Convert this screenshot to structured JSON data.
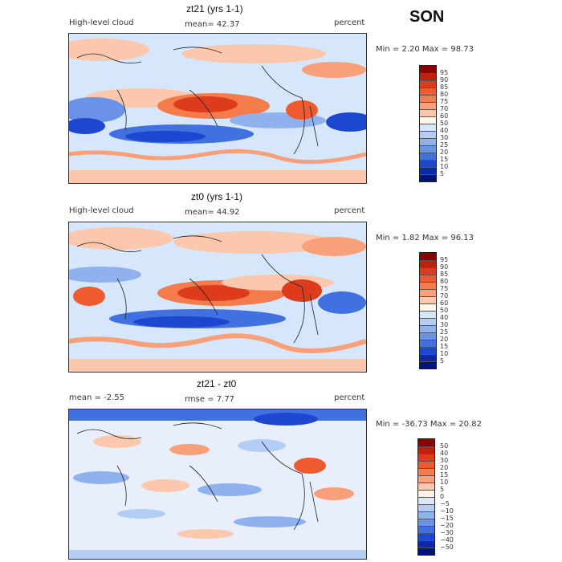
{
  "season": "SON",
  "panels": [
    {
      "title": "zt21 (yrs 1-1)",
      "left_label": "High-level cloud",
      "mean_label": "mean=  42.37",
      "units": "percent",
      "minmax": "Min =    2.20 Max =  98.73",
      "levels": [
        "95",
        "90",
        "85",
        "80",
        "75",
        "70",
        "60",
        "50",
        "40",
        "30",
        "25",
        "20",
        "15",
        "10",
        "5"
      ],
      "colors": [
        "#8b0000",
        "#c0200c",
        "#dd3b1c",
        "#ef5a2e",
        "#f47b4b",
        "#f8a07a",
        "#fbc8ad",
        "#fff8ea",
        "#d6e6fb",
        "#b4cdf5",
        "#8fb2ee",
        "#6a93e8",
        "#4170e0",
        "#1d47cf",
        "#0a2aa8",
        "#00137a"
      ]
    },
    {
      "title": "zt0 (yrs 1-1)",
      "left_label": "High-level cloud",
      "mean_label": "mean=  44.92",
      "units": "percent",
      "minmax": "Min =    1.82 Max =  96.13",
      "levels": [
        "95",
        "90",
        "85",
        "80",
        "75",
        "70",
        "60",
        "50",
        "40",
        "30",
        "25",
        "20",
        "15",
        "10",
        "5"
      ],
      "colors": [
        "#8b0000",
        "#c0200c",
        "#dd3b1c",
        "#ef5a2e",
        "#f47b4b",
        "#f8a07a",
        "#fbc8ad",
        "#fff8ea",
        "#d6e6fb",
        "#b4cdf5",
        "#8fb2ee",
        "#6a93e8",
        "#4170e0",
        "#1d47cf",
        "#0a2aa8",
        "#00137a"
      ]
    },
    {
      "title": "zt21 - zt0",
      "left_label": "mean =   -2.55",
      "mean_label": "rmse =   7.77",
      "units": "percent",
      "minmax": "Min = -36.73 Max =  20.82",
      "levels": [
        "50",
        "40",
        "30",
        "20",
        "15",
        "10",
        "5",
        "0",
        "−5",
        "−10",
        "−15",
        "−20",
        "−30",
        "−40",
        "−50"
      ],
      "colors": [
        "#8b0000",
        "#c0200c",
        "#dd3b1c",
        "#ef5a2e",
        "#f47b4b",
        "#f8a07a",
        "#fbc8ad",
        "#fff4e6",
        "#dbe8fb",
        "#b4cdf5",
        "#8fb2ee",
        "#6a93e8",
        "#4170e0",
        "#1d47cf",
        "#0a2aa8",
        "#00137a"
      ]
    }
  ]
}
